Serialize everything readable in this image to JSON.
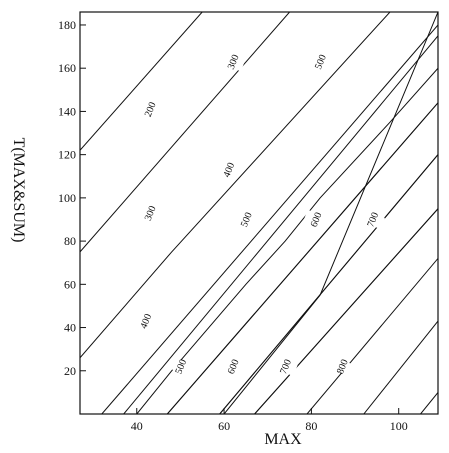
{
  "chart_data": {
    "type": "line",
    "title": "",
    "xlabel": "MAX",
    "ylabel": "T(MAX&SUM)",
    "xlim": [
      27,
      109
    ],
    "ylim": [
      0,
      186
    ],
    "xticks": [
      40,
      60,
      80,
      100
    ],
    "yticks": [
      20,
      40,
      60,
      80,
      100,
      120,
      140,
      160,
      180
    ],
    "grid": false,
    "legend": "none",
    "contours": [
      {
        "label": "",
        "points": [
          [
            27,
            122
          ],
          [
            55,
            186
          ]
        ],
        "label_at": null
      },
      {
        "label": "200",
        "points": [
          [
            27,
            75
          ],
          [
            75,
            186
          ]
        ],
        "label_at": [
          43,
          141
        ]
      },
      {
        "label": "300",
        "points": [
          [
            27,
            26
          ],
          [
            48,
            75
          ],
          [
            98,
            186
          ]
        ],
        "label_at": [
          43,
          93
        ]
      },
      {
        "label": "300",
        "points": [
          [
            40,
            0
          ],
          [
            48,
            20
          ],
          [
            65,
            60
          ],
          [
            74,
            80
          ],
          [
            82,
            100
          ],
          [
            98,
            135
          ],
          [
            109,
            160
          ]
        ],
        "label_at": [
          62,
          163
        ]
      },
      {
        "label": "400",
        "points": [
          [
            32,
            0
          ],
          [
            109,
            180
          ]
        ],
        "label_at": [
          61,
          113
        ]
      },
      {
        "label": "400",
        "points": [
          [
            37,
            0
          ],
          [
            109,
            175
          ]
        ],
        "label_at": [
          42,
          43
        ]
      },
      {
        "label": "500",
        "points": [
          [
            47,
            0
          ],
          [
            109,
            144
          ]
        ],
        "label_at": [
          65,
          90
        ]
      },
      {
        "label": "500",
        "points": [
          [
            47,
            0
          ],
          [
            109,
            144
          ]
        ],
        "label_at": [
          50,
          22
        ]
      },
      {
        "label": "500",
        "points": [
          [
            60,
            0
          ],
          [
            82,
            55
          ],
          [
            109,
            186
          ]
        ],
        "label_at": [
          82,
          163
        ]
      },
      {
        "label": "600",
        "points": [
          [
            59,
            0
          ],
          [
            109,
            120
          ]
        ],
        "label_at": [
          81,
          90
        ]
      },
      {
        "label": "600",
        "points": [
          [
            59,
            0
          ],
          [
            109,
            120
          ]
        ],
        "label_at": [
          62,
          22
        ]
      },
      {
        "label": "700",
        "points": [
          [
            67,
            0
          ],
          [
            109,
            95
          ]
        ],
        "label_at": [
          94,
          90
        ]
      },
      {
        "label": "700",
        "points": [
          [
            67,
            0
          ],
          [
            109,
            95
          ]
        ],
        "label_at": [
          74,
          22
        ]
      },
      {
        "label": "800",
        "points": [
          [
            79,
            0
          ],
          [
            109,
            72
          ]
        ],
        "label_at": [
          87,
          22
        ]
      },
      {
        "label": "",
        "points": [
          [
            92,
            0
          ],
          [
            109,
            43
          ]
        ],
        "label_at": null
      },
      {
        "label": "",
        "points": [
          [
            105,
            0
          ],
          [
            109,
            10
          ]
        ],
        "label_at": null
      }
    ]
  }
}
